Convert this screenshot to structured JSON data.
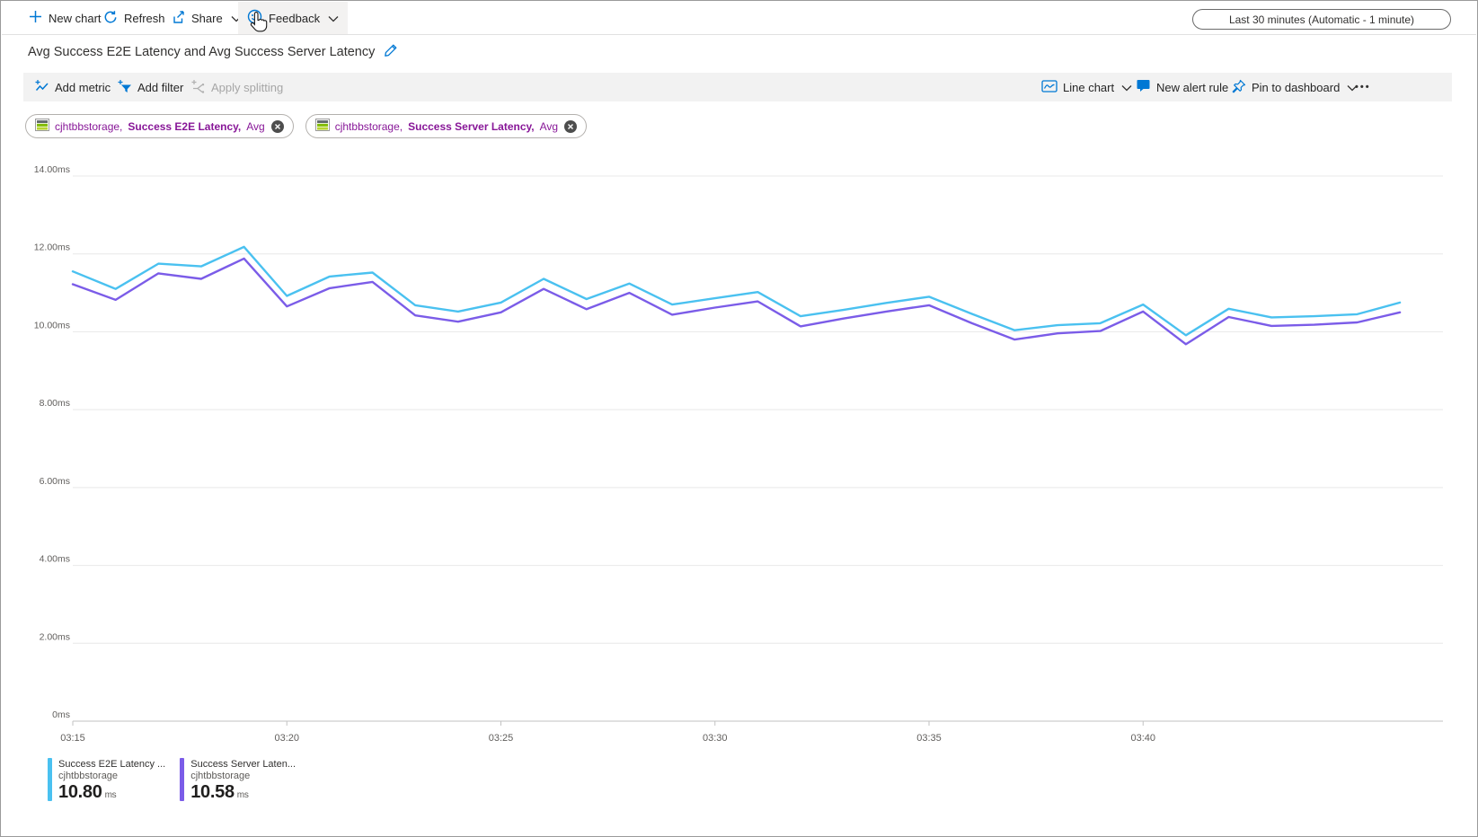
{
  "toolbar_top": {
    "new_chart": "New chart",
    "refresh": "Refresh",
    "share": "Share",
    "feedback": "Feedback",
    "time_range": "Last 30 minutes (Automatic - 1 minute)"
  },
  "title": "Avg Success E2E Latency and Avg Success Server Latency",
  "toolbar_chart": {
    "add_metric": "Add metric",
    "add_filter": "Add filter",
    "apply_splitting": "Apply splitting",
    "chart_type": "Line chart",
    "new_alert_rule": "New alert rule",
    "pin_to_dashboard": "Pin to dashboard",
    "more": "•••"
  },
  "metric_pills": [
    {
      "resource": "cjhtbbstorage,",
      "metric": "Success E2E Latency,",
      "aggregation": "Avg"
    },
    {
      "resource": "cjhtbbstorage,",
      "metric": "Success Server Latency,",
      "aggregation": "Avg"
    }
  ],
  "legend": [
    {
      "name": "Success E2E Latency ...",
      "resource": "cjhtbbstorage",
      "value": "10.80",
      "unit": "ms",
      "color": "#4ac1f0"
    },
    {
      "name": "Success Server Laten...",
      "resource": "cjhtbbstorage",
      "value": "10.58",
      "unit": "ms",
      "color": "#7b5ce8"
    }
  ],
  "colors": {
    "accent_blue": "#0078d4",
    "metric_pill_text": "#881798",
    "series_e2e": "#4ac1f0",
    "series_server": "#7b5ce8",
    "gridline": "#e8e8e8",
    "axis_line": "#c2c2c2",
    "axis_text": "#605e5c"
  },
  "chart_data": {
    "type": "line",
    "title": "Avg Success E2E Latency and Avg Success Server Latency",
    "unit": "ms",
    "ylim": [
      0,
      14
    ],
    "y_tick_labels": [
      "0ms",
      "2.00ms",
      "4.00ms",
      "6.00ms",
      "8.00ms",
      "10.00ms",
      "12.00ms",
      "14.00ms"
    ],
    "x_tick_labels": [
      "03:15",
      "03:20",
      "03:25",
      "03:30",
      "03:35",
      "03:40"
    ],
    "minutes_per_x_tick": 5,
    "start_time": "03:15",
    "interval": "1 minute",
    "grid": true,
    "legend_position": "bottom",
    "series": [
      {
        "name": "Success E2E Latency (Avg), cjhtbbstorage",
        "color": "#4ac1f0",
        "values": [
          11.55,
          11.1,
          11.75,
          11.68,
          12.18,
          10.92,
          11.42,
          11.52,
          10.68,
          10.52,
          10.75,
          11.36,
          10.84,
          11.24,
          10.7,
          10.86,
          11.02,
          10.4,
          10.56,
          10.74,
          10.9,
          10.46,
          10.04,
          10.17,
          10.22,
          10.7,
          9.91,
          10.59,
          10.37,
          10.4,
          10.45,
          10.75
        ]
      },
      {
        "name": "Success Server Latency (Avg), cjhtbbstorage",
        "color": "#7b5ce8",
        "values": [
          11.22,
          10.82,
          11.5,
          11.36,
          11.88,
          10.65,
          11.12,
          11.28,
          10.42,
          10.26,
          10.5,
          11.1,
          10.58,
          11.0,
          10.44,
          10.62,
          10.78,
          10.14,
          10.34,
          10.52,
          10.68,
          10.22,
          9.8,
          9.96,
          10.02,
          10.52,
          9.68,
          10.38,
          10.15,
          10.18,
          10.24,
          10.5
        ]
      }
    ]
  }
}
